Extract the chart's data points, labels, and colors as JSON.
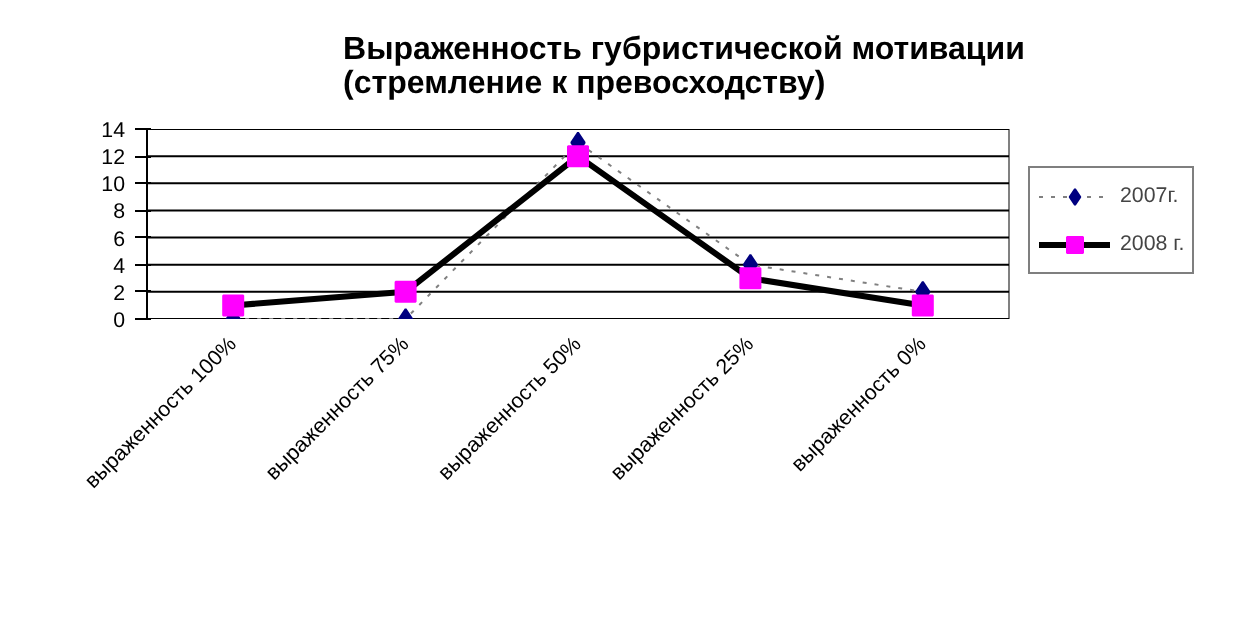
{
  "chart_data": {
    "type": "line",
    "title": "Выраженность губристической мотивации\n(стремление к превосходству)",
    "categories": [
      "выраженность 100%",
      "выраженность 75%",
      "выраженность 50%",
      "выраженность 25%",
      "выраженность 0%"
    ],
    "series": [
      {
        "name": "2007г.",
        "color": "#808080",
        "colors": [
          "#000080",
          "#000080",
          "#000080",
          "#000080",
          "#000080"
        ],
        "values": [
          0,
          0,
          13,
          4,
          2
        ],
        "marker": "diamond",
        "line_style": "dotted"
      },
      {
        "name": "2008 г.",
        "color": "#000000",
        "colors": [
          "#ff00ff",
          "#ff00ff",
          "#ff00ff",
          "#ff00ff",
          "#ff00ff"
        ],
        "values": [
          1,
          2,
          12,
          3,
          1
        ],
        "marker": "square",
        "line_style": "solid"
      }
    ],
    "ylim": [
      0,
      14
    ],
    "yticks": [
      0,
      2,
      4,
      6,
      8,
      10,
      12,
      14
    ],
    "grid": "y",
    "legend": "right"
  }
}
